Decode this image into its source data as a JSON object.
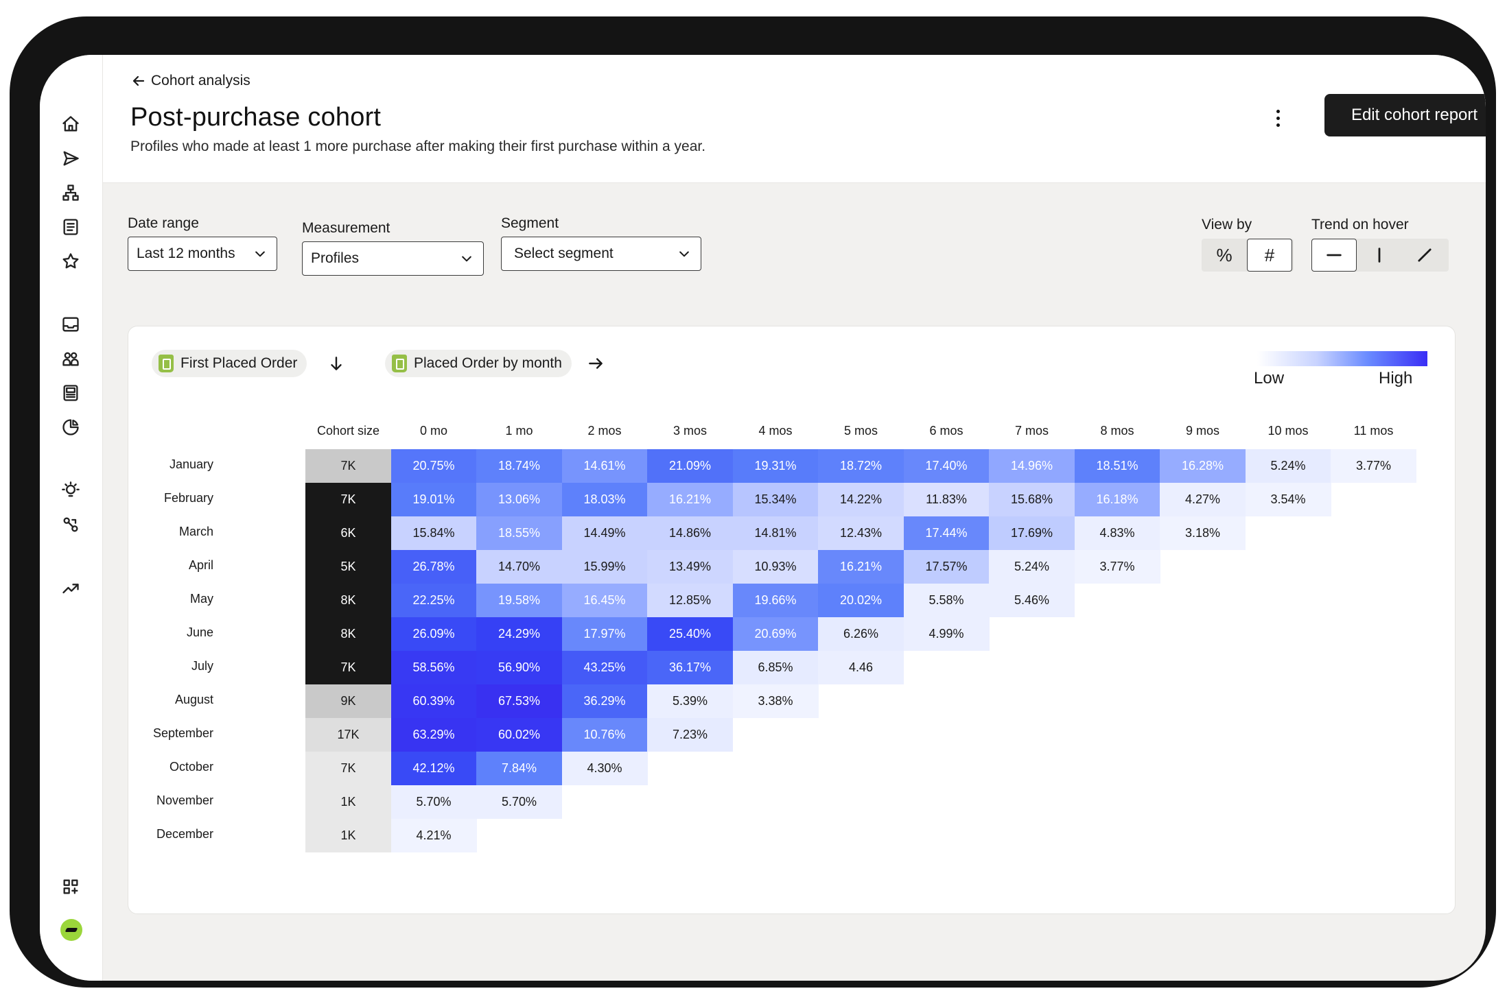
{
  "header": {
    "back_label": "Cohort analysis",
    "title": "Post-purchase cohort",
    "subtitle": "Profiles who made at least 1 more purchase after making their first purchase within a year.",
    "edit_button": "Edit cohort report"
  },
  "sidebar": {
    "icons": [
      "home-icon",
      "send-icon",
      "flow-icon",
      "list-icon",
      "star-icon",
      "inbox-icon",
      "audience-icon",
      "content-icon",
      "analytics-icon",
      "idea-icon",
      "integrations-icon",
      "trend-icon",
      "apps-icon"
    ]
  },
  "filters": {
    "date_range_label": "Date range",
    "date_range_value": "Last 12 months",
    "measurement_label": "Measurement",
    "measurement_value": "Profiles",
    "segment_label": "Segment",
    "segment_placeholder": "Select segment",
    "view_by_label": "View by",
    "view_by_options": [
      "%",
      "#"
    ],
    "view_by_selected": "#",
    "trend_label": "Trend on hover",
    "trend_options": [
      "flat",
      "vertical",
      "diagonal"
    ],
    "trend_selected": "flat"
  },
  "card": {
    "row_metric": "First Placed Order",
    "col_metric": "Placed Order by month",
    "legend_low": "Low",
    "legend_high": "High",
    "scale_colors": {
      "low": "#ffffff",
      "high": "#3a2ef5"
    }
  },
  "chart_data": {
    "type": "heatmap",
    "columns": [
      "Cohort size",
      "0 mo",
      "1 mo",
      "2 mos",
      "3 mos",
      "4 mos",
      "5 mos",
      "6 mos",
      "7 mos",
      "8 mos",
      "9 mos",
      "10 mos",
      "11 mos"
    ],
    "rows": [
      {
        "label": "January",
        "size": "7K",
        "size_level": 0.15,
        "values": [
          "20.75%",
          "18.74%",
          "14.61%",
          "21.09%",
          "19.31%",
          "18.72%",
          "17.40%",
          "14.96%",
          "18.51%",
          "16.28%",
          "5.24%",
          "3.77%"
        ]
      },
      {
        "label": "February",
        "size": "7K",
        "size_level": 1.0,
        "values": [
          "19.01%",
          "13.06%",
          "18.03%",
          "16.21%",
          "15.34%",
          "14.22%",
          "11.83%",
          "15.68%",
          "16.18%",
          "4.27%",
          "3.54%"
        ]
      },
      {
        "label": "March",
        "size": "6K",
        "size_level": 1.0,
        "values": [
          "15.84%",
          "18.55%",
          "14.49%",
          "14.86%",
          "14.81%",
          "12.43%",
          "17.44%",
          "17.69%",
          "4.83%",
          "3.18%"
        ]
      },
      {
        "label": "April",
        "size": "5K",
        "size_level": 1.0,
        "values": [
          "26.78%",
          "14.70%",
          "15.99%",
          "13.49%",
          "10.93%",
          "16.21%",
          "17.57%",
          "5.24%",
          "3.77%"
        ]
      },
      {
        "label": "May",
        "size": "8K",
        "size_level": 1.0,
        "values": [
          "22.25%",
          "19.58%",
          "16.45%",
          "12.85%",
          "19.66%",
          "20.02%",
          "5.58%",
          "5.46%"
        ]
      },
      {
        "label": "June",
        "size": "8K",
        "size_level": 1.0,
        "values": [
          "26.09%",
          "24.29%",
          "17.97%",
          "25.40%",
          "20.69%",
          "6.26%",
          "4.99%"
        ]
      },
      {
        "label": "July",
        "size": "7K",
        "size_level": 1.0,
        "values": [
          "58.56%",
          "56.90%",
          "43.25%",
          "36.17%",
          "6.85%",
          "4.46"
        ]
      },
      {
        "label": "August",
        "size": "9K",
        "size_level": 0.15,
        "values": [
          "60.39%",
          "67.53%",
          "36.29%",
          "5.39%",
          "3.38%"
        ]
      },
      {
        "label": "September",
        "size": "17K",
        "size_level": 0.05,
        "values": [
          "63.29%",
          "60.02%",
          "10.76%",
          "7.23%"
        ]
      },
      {
        "label": "October",
        "size": "7K",
        "size_level": 0.0,
        "values": [
          "42.12%",
          "7.84%",
          "4.30%"
        ]
      },
      {
        "label": "November",
        "size": "1K",
        "size_level": 0.0,
        "values": [
          "5.70%",
          "5.70%"
        ]
      },
      {
        "label": "December",
        "size": "1K",
        "size_level": 0.0,
        "values": [
          "4.21%"
        ]
      }
    ],
    "cell_intensity": [
      [
        0.62,
        0.58,
        0.5,
        0.64,
        0.6,
        0.58,
        0.55,
        0.42,
        0.58,
        0.4,
        0.1,
        0.06
      ],
      [
        0.6,
        0.5,
        0.58,
        0.4,
        0.28,
        0.2,
        0.15,
        0.22,
        0.4,
        0.08,
        0.06
      ],
      [
        0.22,
        0.45,
        0.22,
        0.22,
        0.22,
        0.18,
        0.55,
        0.25,
        0.08,
        0.06
      ],
      [
        0.7,
        0.22,
        0.22,
        0.2,
        0.16,
        0.55,
        0.25,
        0.08,
        0.06
      ],
      [
        0.68,
        0.5,
        0.4,
        0.18,
        0.55,
        0.58,
        0.08,
        0.08
      ],
      [
        0.78,
        0.82,
        0.55,
        0.78,
        0.5,
        0.1,
        0.08
      ],
      [
        0.88,
        0.86,
        0.72,
        0.68,
        0.1,
        0.08
      ],
      [
        0.9,
        0.95,
        0.68,
        0.08,
        0.06
      ],
      [
        0.92,
        0.9,
        0.55,
        0.1
      ],
      [
        0.78,
        0.58,
        0.08
      ],
      [
        0.08,
        0.08
      ],
      [
        0.06
      ]
    ]
  }
}
